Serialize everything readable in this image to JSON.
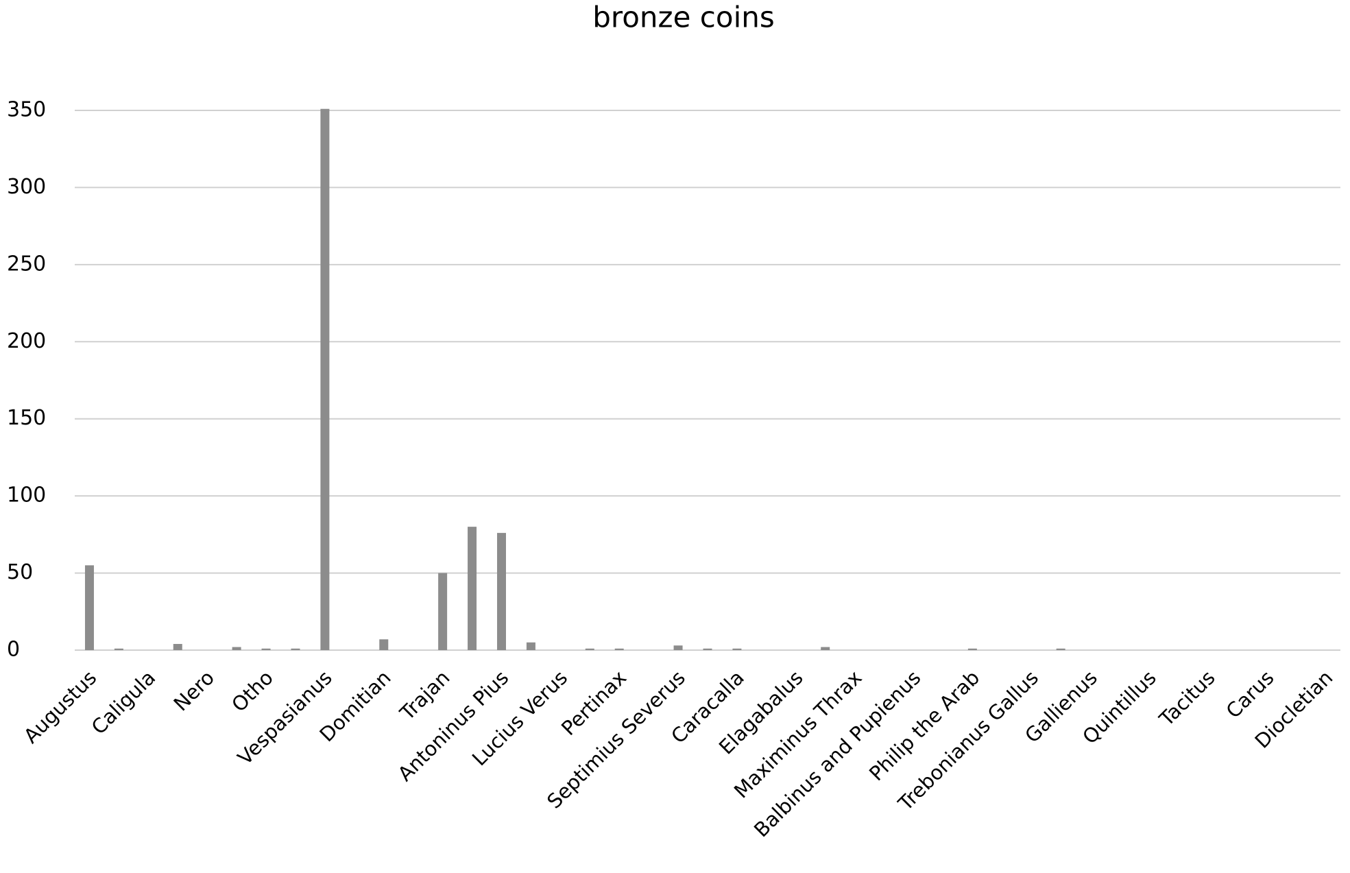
{
  "chart_data": {
    "type": "bar",
    "title": "bronze coins",
    "categories": [
      "Augustus",
      null,
      "Caligula",
      null,
      "Nero",
      null,
      "Otho",
      null,
      "Vespasianus",
      null,
      "Domitian",
      null,
      "Trajan",
      null,
      "Antoninus Pius",
      null,
      "Lucius Verus",
      null,
      "Pertinax",
      null,
      "Septimius Severus",
      null,
      "Caracalla",
      null,
      "Elagabalus",
      null,
      "Maximinus Thrax",
      null,
      "Balbinus and Pupienus",
      null,
      "Philip the Arab",
      null,
      "Trebonianus Gallus",
      null,
      "Gallienus",
      null,
      "Quintillus",
      null,
      "Tacitus",
      null,
      "Carus",
      null,
      "Diocletian"
    ],
    "values": [
      55,
      1,
      0,
      4,
      0,
      2,
      1,
      1,
      351,
      0,
      7,
      0,
      50,
      80,
      76,
      5,
      0,
      1,
      1,
      0,
      3,
      1,
      1,
      0,
      0,
      2,
      0,
      0,
      0,
      0,
      1,
      0,
      0,
      1,
      0,
      0,
      0,
      0,
      0,
      0,
      0,
      0,
      0
    ],
    "color": "#8c8c8c",
    "ylim": [
      0,
      350
    ],
    "yticks": [
      0,
      50,
      100,
      150,
      200,
      250,
      300,
      350
    ],
    "grid": true
  }
}
